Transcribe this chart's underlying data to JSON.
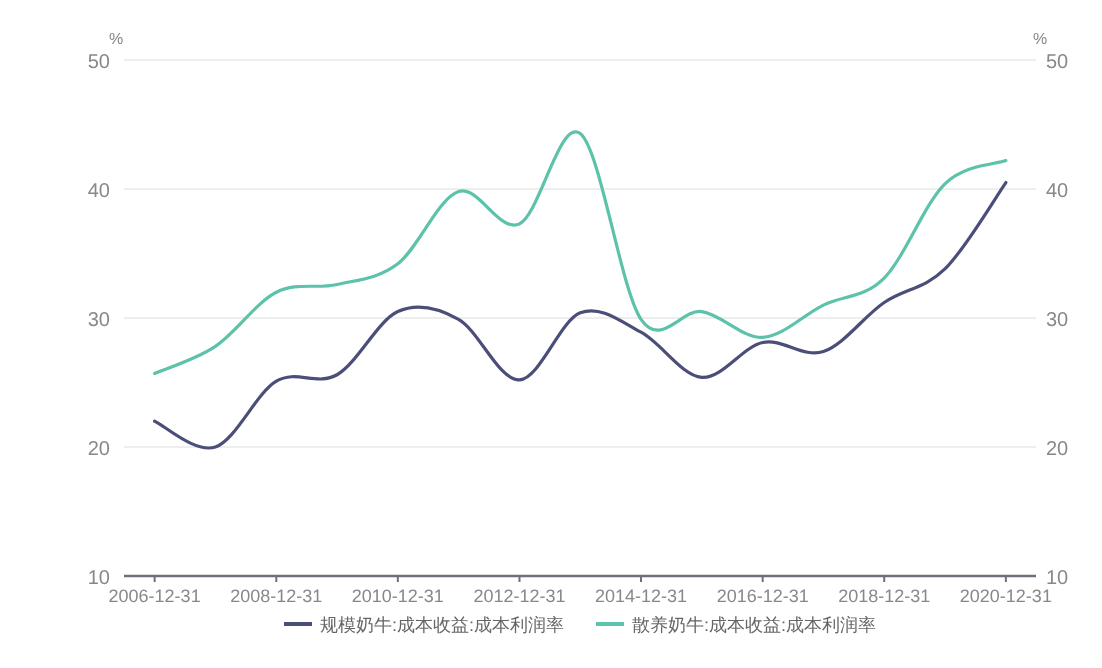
{
  "chart_data": {
    "type": "line",
    "ylabel": "%",
    "y2label": "%",
    "x": [
      "2006-12-31",
      "2007-12-31",
      "2008-12-31",
      "2009-12-31",
      "2010-12-31",
      "2011-12-31",
      "2012-12-31",
      "2013-12-31",
      "2014-12-31",
      "2015-12-31",
      "2016-12-31",
      "2017-12-31",
      "2018-12-31",
      "2019-12-31",
      "2020-12-31"
    ],
    "series": [
      {
        "name": "规模奶牛:成本收益:成本利润率",
        "color": "#4a4e78",
        "values": [
          22.0,
          20.0,
          25.1,
          25.6,
          30.5,
          29.9,
          25.2,
          30.4,
          28.9,
          25.4,
          28.1,
          27.4,
          31.2,
          33.8,
          40.5
        ]
      },
      {
        "name": "散养奶牛:成本收益:成本利润率",
        "color": "#5cc2aa",
        "values": [
          25.7,
          27.8,
          32.0,
          32.6,
          34.2,
          39.8,
          37.3,
          44.3,
          29.9,
          30.5,
          28.5,
          31.0,
          33.1,
          40.4,
          42.2
        ]
      }
    ],
    "xlim": [
      "2006-06-30",
      "2021-06-30"
    ],
    "xticks": [
      "2006-12-31",
      "2008-12-31",
      "2010-12-31",
      "2012-12-31",
      "2014-12-31",
      "2016-12-31",
      "2018-12-31",
      "2020-12-31"
    ],
    "ylim": [
      10,
      50
    ],
    "yticks": [
      10,
      20,
      30,
      40,
      50
    ],
    "y2lim": [
      10,
      50
    ],
    "y2ticks": [
      10,
      20,
      30,
      40,
      50
    ],
    "grid": "y",
    "legend": "bottom"
  }
}
